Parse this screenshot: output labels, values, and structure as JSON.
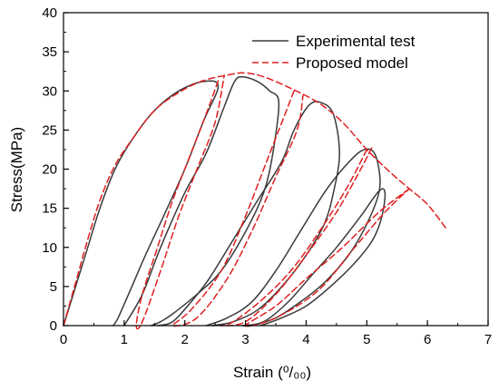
{
  "chart_data": {
    "type": "line",
    "xlabel": "Strain (",
    "xlabel_unit": "⁰/₀₀",
    "ylabel": "Stress(MPa)",
    "xlim": [
      0,
      7
    ],
    "ylim": [
      0,
      40
    ],
    "xticks": [
      "0",
      "1",
      "2",
      "3",
      "4",
      "5",
      "6",
      "7"
    ],
    "yticks": [
      "0",
      "5",
      "10",
      "15",
      "20",
      "25",
      "30",
      "35",
      "40"
    ],
    "grid": false,
    "legend_position": "top-right",
    "series": [
      {
        "name": "Experimental test",
        "color": "#3a3a3a",
        "style": "solid",
        "loops": [
          [
            [
              0,
              0
            ],
            [
              0.2,
              5
            ],
            [
              0.4,
              10
            ],
            [
              0.6,
              15
            ],
            [
              0.85,
              20
            ],
            [
              1.15,
              24
            ],
            [
              1.5,
              27.5
            ],
            [
              1.9,
              30
            ],
            [
              2.3,
              31.2
            ],
            [
              2.55,
              30.6
            ],
            [
              2.3,
              26
            ],
            [
              2.0,
              20
            ],
            [
              1.65,
              14
            ],
            [
              1.35,
              9
            ],
            [
              1.1,
              4.5
            ],
            [
              0.9,
              1
            ],
            [
              0.82,
              0
            ]
          ],
          [
            [
              1.0,
              0
            ],
            [
              1.3,
              4
            ],
            [
              1.6,
              10
            ],
            [
              2.0,
              17
            ],
            [
              2.35,
              22
            ],
            [
              2.65,
              28
            ],
            [
              2.82,
              31.2
            ],
            [
              2.95,
              31.8
            ],
            [
              3.2,
              31.2
            ],
            [
              3.4,
              30
            ],
            [
              3.55,
              28.5
            ],
            [
              3.45,
              22
            ],
            [
              3.3,
              17
            ],
            [
              3.0,
              12
            ],
            [
              2.6,
              7
            ],
            [
              2.2,
              4
            ],
            [
              1.8,
              1.5
            ],
            [
              1.6,
              0.5
            ],
            [
              1.45,
              0
            ]
          ],
          [
            [
              1.55,
              0
            ],
            [
              1.8,
              0.5
            ],
            [
              2.1,
              3
            ],
            [
              2.4,
              6
            ],
            [
              2.8,
              11
            ],
            [
              3.2,
              16
            ],
            [
              3.6,
              21
            ],
            [
              3.8,
              25
            ],
            [
              4.05,
              28.2
            ],
            [
              4.25,
              28.5
            ],
            [
              4.45,
              27
            ],
            [
              4.55,
              22
            ],
            [
              4.45,
              17
            ],
            [
              4.3,
              13
            ],
            [
              4.0,
              9
            ],
            [
              3.6,
              5
            ],
            [
              3.2,
              2
            ],
            [
              2.8,
              0.5
            ],
            [
              2.45,
              0
            ]
          ],
          [
            [
              2.35,
              0
            ],
            [
              2.7,
              1
            ],
            [
              3.1,
              3
            ],
            [
              3.5,
              7
            ],
            [
              3.9,
              12
            ],
            [
              4.3,
              17
            ],
            [
              4.6,
              20
            ],
            [
              4.9,
              22.3
            ],
            [
              5.1,
              22.3
            ],
            [
              5.2,
              20
            ],
            [
              5.2,
              17
            ],
            [
              5.0,
              13
            ],
            [
              4.7,
              9
            ],
            [
              4.3,
              5.5
            ],
            [
              3.9,
              3
            ],
            [
              3.5,
              1
            ],
            [
              3.1,
              0
            ],
            [
              2.95,
              0
            ]
          ],
          [
            [
              2.95,
              0
            ],
            [
              3.3,
              0.5
            ],
            [
              3.7,
              3
            ],
            [
              4.1,
              6.5
            ],
            [
              4.5,
              10
            ],
            [
              4.9,
              14
            ],
            [
              5.2,
              17.2
            ],
            [
              5.3,
              17
            ],
            [
              5.25,
              14
            ],
            [
              5.1,
              11
            ],
            [
              4.8,
              8
            ],
            [
              4.4,
              5
            ],
            [
              4.0,
              2.5
            ],
            [
              3.6,
              1
            ],
            [
              3.25,
              0
            ]
          ]
        ]
      },
      {
        "name": "Proposed model",
        "color": "#e02020",
        "style": "dashed",
        "loops": [
          [
            [
              0,
              0
            ],
            [
              0.2,
              5.5
            ],
            [
              0.4,
              11
            ],
            [
              0.6,
              16
            ],
            [
              0.85,
              20.5
            ],
            [
              1.15,
              24
            ],
            [
              1.5,
              27.5
            ],
            [
              1.9,
              29.8
            ],
            [
              2.3,
              31.3
            ],
            [
              2.75,
              32.1
            ],
            [
              3.0,
              32.3
            ],
            [
              3.3,
              31.8
            ],
            [
              3.7,
              30.5
            ],
            [
              4.2,
              28.5
            ],
            [
              4.6,
              26
            ],
            [
              5.0,
              22.5
            ],
            [
              5.4,
              19.5
            ],
            [
              5.7,
              17.5
            ],
            [
              6.0,
              15.5
            ],
            [
              6.3,
              12.5
            ]
          ],
          [
            [
              2.55,
              31.3
            ],
            [
              2.35,
              27
            ],
            [
              2.1,
              22
            ],
            [
              1.8,
              16
            ],
            [
              1.55,
              10
            ],
            [
              1.3,
              4
            ],
            [
              1.2,
              0
            ],
            [
              1.3,
              0.5
            ],
            [
              1.6,
              7
            ],
            [
              1.9,
              14
            ],
            [
              2.2,
              20
            ],
            [
              2.5,
              26
            ],
            [
              2.65,
              32
            ]
          ],
          [
            [
              3.8,
              30
            ],
            [
              3.6,
              26
            ],
            [
              3.3,
              20
            ],
            [
              3.0,
              14
            ],
            [
              2.6,
              7
            ],
            [
              2.1,
              2
            ],
            [
              1.8,
              0
            ],
            [
              2.2,
              1
            ],
            [
              2.7,
              6
            ],
            [
              3.1,
              12
            ],
            [
              3.5,
              19
            ],
            [
              3.85,
              25
            ],
            [
              3.95,
              29.5
            ]
          ],
          [
            [
              5.0,
              22.5
            ],
            [
              4.7,
              18
            ],
            [
              4.3,
              13
            ],
            [
              3.8,
              7.5
            ],
            [
              3.3,
              3.5
            ],
            [
              2.8,
              0.5
            ],
            [
              2.6,
              0
            ],
            [
              3.0,
              0.5
            ],
            [
              3.5,
              4
            ],
            [
              4.0,
              9
            ],
            [
              4.5,
              14.5
            ],
            [
              4.9,
              20
            ],
            [
              5.1,
              23
            ]
          ],
          [
            [
              5.7,
              17.5
            ],
            [
              5.2,
              14.5
            ],
            [
              4.6,
              10
            ],
            [
              4.0,
              6
            ],
            [
              3.5,
              2.5
            ],
            [
              3.0,
              0
            ],
            [
              3.5,
              1
            ],
            [
              4.2,
              4.5
            ],
            [
              4.8,
              10
            ],
            [
              5.3,
              14.5
            ],
            [
              5.7,
              17.5
            ]
          ]
        ]
      }
    ]
  }
}
